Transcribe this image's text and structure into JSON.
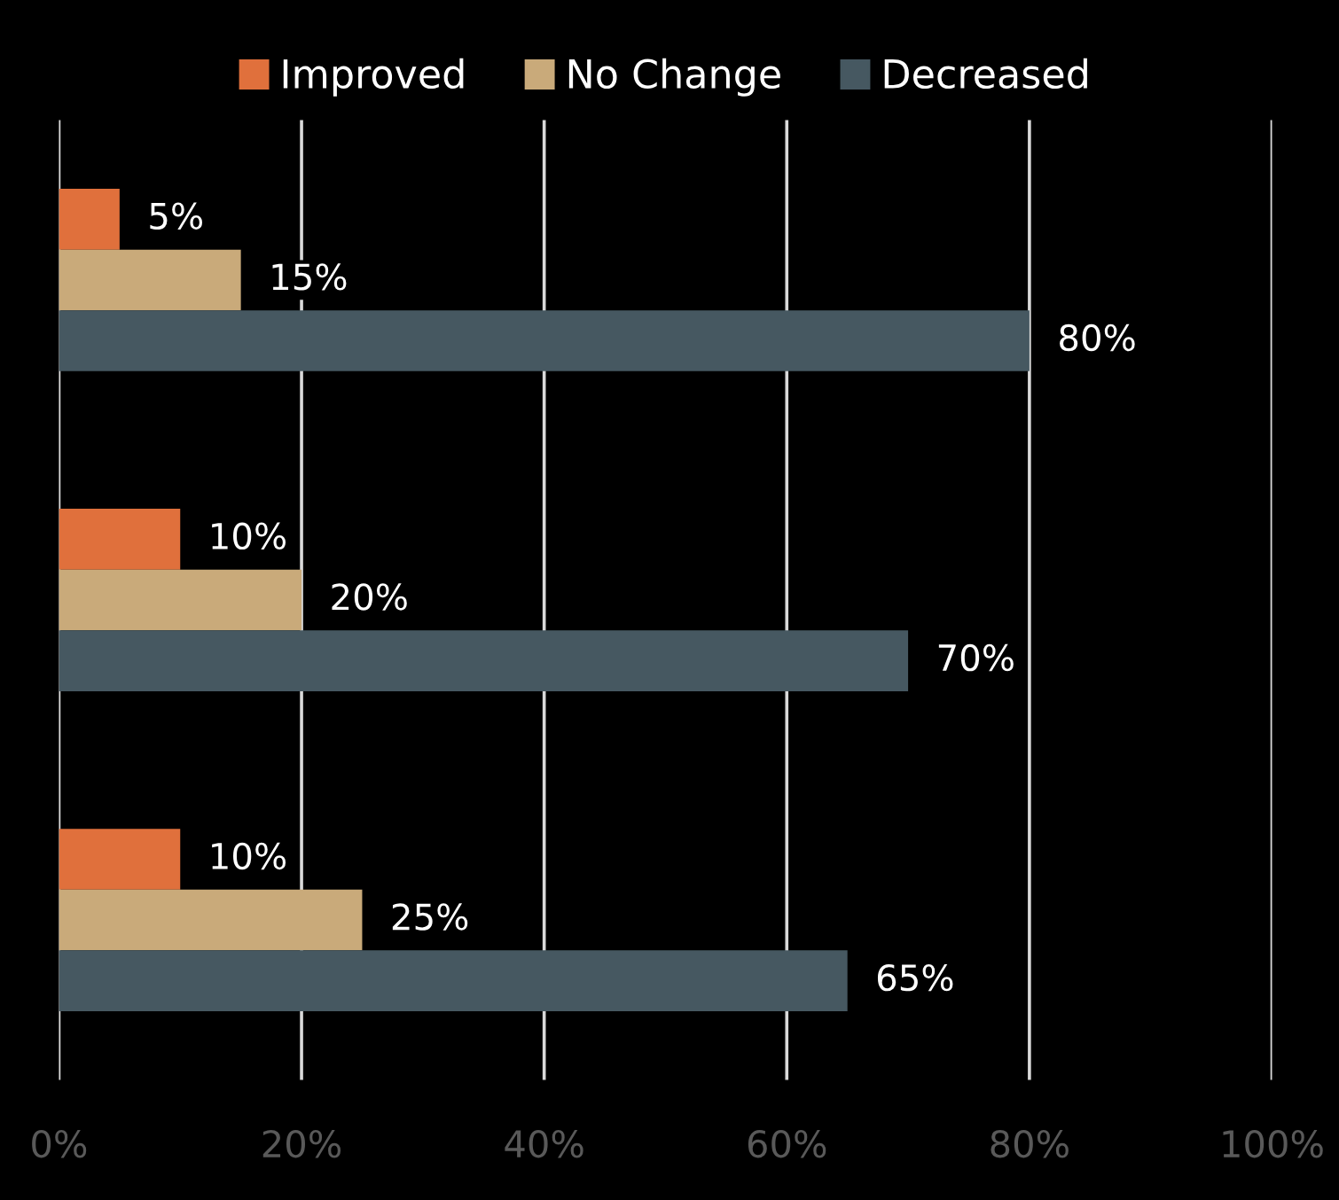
{
  "chart_data": {
    "type": "bar",
    "orientation": "horizontal",
    "categories": [
      null,
      null,
      null
    ],
    "series": [
      {
        "name": "Improved",
        "color": "#e0703c",
        "values": [
          5,
          10,
          10
        ],
        "value_labels": [
          "5%",
          "10%",
          "10%"
        ]
      },
      {
        "name": "No Change",
        "color": "#c9aa7a",
        "values": [
          15,
          20,
          25
        ],
        "value_labels": [
          "15%",
          "20%",
          "25%"
        ]
      },
      {
        "name": "Decreased",
        "color": "#465861",
        "values": [
          80,
          70,
          65
        ],
        "value_labels": [
          "80%",
          "70%",
          "65%"
        ]
      }
    ],
    "xlim": [
      0,
      100
    ],
    "xticks": [
      {
        "value": 0,
        "label": "0%"
      },
      {
        "value": 20,
        "label": "20%"
      },
      {
        "value": 40,
        "label": "40%"
      },
      {
        "value": 60,
        "label": "60%"
      },
      {
        "value": 80,
        "label": "80%"
      },
      {
        "value": 100,
        "label": "100%"
      }
    ],
    "grid": "x",
    "legend": "top"
  }
}
